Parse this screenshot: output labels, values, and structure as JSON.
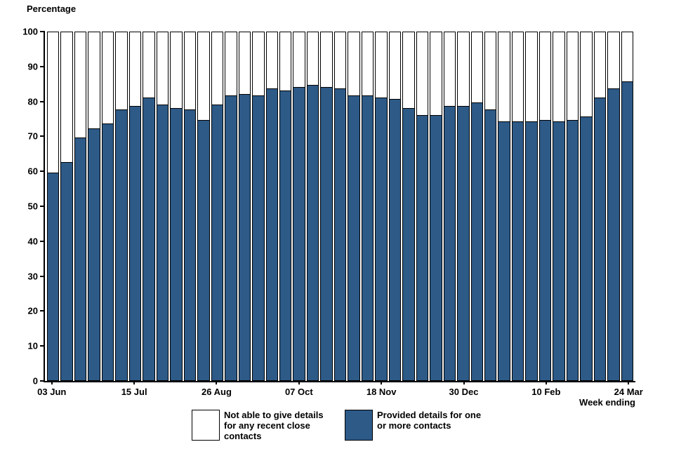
{
  "chart": {
    "y_axis_title": "Percentage",
    "x_axis_title": "Week ending",
    "legend": [
      {
        "label": "Not able to give details for any recent close contacts",
        "color": "#ffffff"
      },
      {
        "label": "Provided details for one or more contacts",
        "color": "#2d5a87"
      }
    ]
  },
  "chart_data": {
    "type": "bar",
    "stacked": true,
    "stack_total": 100,
    "title": "",
    "xlabel": "Week ending",
    "ylabel": "Percentage",
    "ylim": [
      0,
      100
    ],
    "yticks": [
      0,
      10,
      20,
      30,
      40,
      50,
      60,
      70,
      80,
      90,
      100
    ],
    "n_bars": 43,
    "x_unit": "week",
    "xtick_indices": [
      0,
      6,
      12,
      18,
      24,
      30,
      36,
      42
    ],
    "xtick_labels": [
      "03 Jun",
      "15 Jul",
      "26 Aug",
      "07 Oct",
      "18 Nov",
      "30 Dec",
      "10 Feb",
      "24 Mar"
    ],
    "grid": false,
    "legend_position": "bottom",
    "series": [
      {
        "name": "Provided details for one or more contacts",
        "color": "#2d5a87",
        "values": [
          59.5,
          62.5,
          69.5,
          72,
          73.5,
          77.5,
          78.5,
          81,
          79,
          78,
          77.5,
          74.5,
          79,
          81.5,
          82,
          81.5,
          83.5,
          83,
          84,
          84.5,
          84,
          83.5,
          81.5,
          81.5,
          81,
          80.5,
          78,
          76,
          76,
          78.5,
          78.5,
          79.5,
          77.5,
          74,
          74,
          74,
          74.5,
          74,
          74.5,
          75.5,
          81,
          83.5,
          85.5
        ]
      },
      {
        "name": "Not able to give details for any recent close contacts",
        "color": "#ffffff",
        "values": [
          40.5,
          37.5,
          30.5,
          28,
          26.5,
          22.5,
          21.5,
          19,
          21,
          22,
          22.5,
          25.5,
          21,
          18.5,
          18,
          18.5,
          16.5,
          17,
          16,
          15.5,
          16,
          16.5,
          18.5,
          18.5,
          19,
          19.5,
          22,
          24,
          24,
          21.5,
          21.5,
          20.5,
          22.5,
          26,
          26,
          26,
          25.5,
          26,
          25.5,
          24.5,
          19,
          16.5,
          14.5
        ]
      }
    ]
  }
}
